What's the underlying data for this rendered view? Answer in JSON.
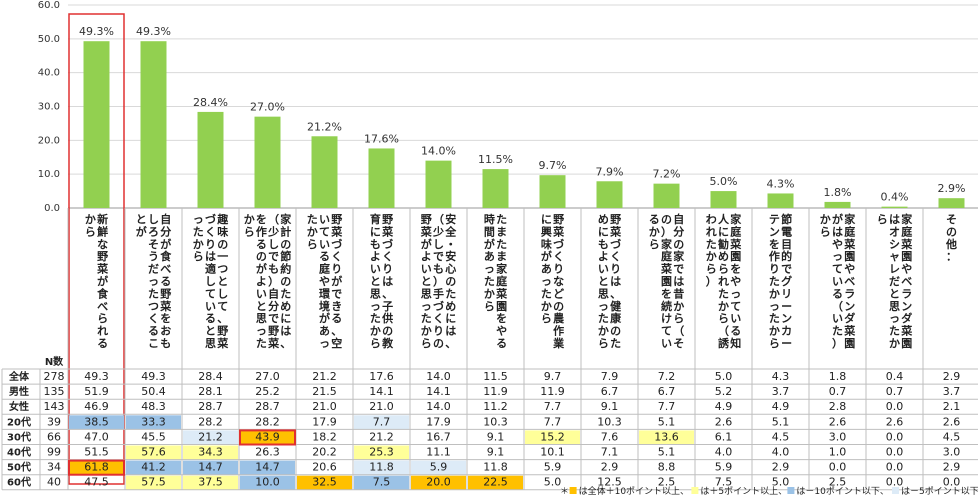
{
  "chart_data": {
    "type": "bar",
    "ylim": [
      0,
      60
    ],
    "yticks": [
      "0.0",
      "10.0",
      "20.0",
      "30.0",
      "40.0",
      "50.0",
      "60.0"
    ],
    "categories": [
      "新鮮な野菜が食べられるから",
      "自分が食べる野菜をおもしろそうだったつくることが",
      "趣味の一つとして、野菜づくりは適していると思ったから",
      "家計の節約のためには、（少しでも）自分で野菜を作るのがよいと思ったから",
      "野菜づくりができる、空いている庭や環境があったから",
      "野菜づくりは、子供の教育にもよいと思ったから",
      "安全・安心のためには、（少しでも）手づくりの野菜がよいと思ったから",
      "たまたま家庭菜園をやる時間があったから",
      "野菜づくりなどの農作業に興味があったから",
      "野菜づくりは、健康のためにもよいと思ったから",
      "自分の家では昔から（その）家庭菜園を続けているから",
      "家庭菜園をやっている知人に勧められたから（誘われたから）",
      "節電目的でグリーンカーテンを作りたかったから",
      "家庭菜園やベランダ菜園がはやっている（いた）から",
      "家庭菜園やベランダ菜園はオシャレだと思ったから",
      "その他："
    ],
    "value_labels": [
      "49.3%",
      "49.3%",
      "28.4%",
      "27.0%",
      "21.2%",
      "17.6%",
      "14.0%",
      "11.5%",
      "9.7%",
      "7.9%",
      "7.2%",
      "5.0%",
      "4.3%",
      "1.8%",
      "0.4%",
      "2.9%"
    ],
    "values": [
      49.3,
      49.3,
      28.4,
      27.0,
      21.2,
      17.6,
      14.0,
      11.5,
      9.7,
      7.9,
      7.2,
      5.0,
      4.3,
      1.8,
      0.4,
      2.9
    ],
    "highlight_category_index": 0,
    "n_header": "N数",
    "table": [
      {
        "label": "全体",
        "n": "278",
        "cells": [
          "49.3",
          "49.3",
          "28.4",
          "27.0",
          "21.2",
          "17.6",
          "14.0",
          "11.5",
          "9.7",
          "7.9",
          "7.2",
          "5.0",
          "4.3",
          "1.8",
          "0.4",
          "2.9"
        ],
        "styles": [
          0,
          0,
          0,
          0,
          0,
          0,
          0,
          0,
          0,
          0,
          0,
          0,
          0,
          0,
          0,
          0
        ]
      },
      {
        "label": "男性",
        "n": "135",
        "cells": [
          "51.9",
          "50.4",
          "28.1",
          "25.2",
          "21.5",
          "14.1",
          "14.1",
          "11.9",
          "11.9",
          "6.7",
          "6.7",
          "5.2",
          "3.7",
          "0.7",
          "0.7",
          "3.7"
        ],
        "styles": [
          0,
          0,
          0,
          0,
          0,
          0,
          0,
          0,
          0,
          0,
          0,
          0,
          0,
          0,
          0,
          0
        ]
      },
      {
        "label": "女性",
        "n": "143",
        "cells": [
          "46.9",
          "48.3",
          "28.7",
          "28.7",
          "21.0",
          "21.0",
          "14.0",
          "11.2",
          "7.7",
          "9.1",
          "7.7",
          "4.9",
          "4.9",
          "2.8",
          "0.0",
          "2.1"
        ],
        "styles": [
          0,
          0,
          0,
          0,
          0,
          0,
          0,
          0,
          0,
          0,
          0,
          0,
          0,
          0,
          0,
          0
        ]
      },
      {
        "label": "20代",
        "n": "39",
        "cells": [
          "38.5",
          "33.3",
          "28.2",
          "28.2",
          "17.9",
          "7.7",
          "17.9",
          "10.3",
          "7.7",
          "10.3",
          "5.1",
          "2.6",
          "5.1",
          "2.6",
          "2.6",
          "2.6"
        ],
        "styles": [
          3,
          3,
          0,
          0,
          0,
          4,
          0,
          0,
          0,
          0,
          0,
          0,
          0,
          0,
          0,
          0
        ]
      },
      {
        "label": "30代",
        "n": "66",
        "cells": [
          "47.0",
          "45.5",
          "21.2",
          "43.9",
          "18.2",
          "21.2",
          "16.7",
          "9.1",
          "15.2",
          "7.6",
          "13.6",
          "6.1",
          "4.5",
          "3.0",
          "0.0",
          "4.5"
        ],
        "styles": [
          0,
          0,
          4,
          1,
          0,
          0,
          0,
          0,
          2,
          0,
          2,
          0,
          0,
          0,
          0,
          0
        ]
      },
      {
        "label": "40代",
        "n": "99",
        "cells": [
          "51.5",
          "57.6",
          "34.3",
          "26.3",
          "20.2",
          "25.3",
          "11.1",
          "9.1",
          "10.1",
          "7.1",
          "5.1",
          "4.0",
          "4.0",
          "1.0",
          "0.0",
          "3.0"
        ],
        "styles": [
          0,
          2,
          2,
          0,
          0,
          2,
          0,
          0,
          0,
          0,
          0,
          0,
          0,
          0,
          0,
          0
        ]
      },
      {
        "label": "50代",
        "n": "34",
        "cells": [
          "61.8",
          "41.2",
          "14.7",
          "14.7",
          "20.6",
          "11.8",
          "5.9",
          "11.8",
          "5.9",
          "2.9",
          "8.8",
          "5.9",
          "2.9",
          "0.0",
          "0.0",
          "2.9"
        ],
        "styles": [
          1,
          3,
          3,
          3,
          0,
          4,
          4,
          0,
          0,
          0,
          0,
          0,
          0,
          0,
          0,
          0
        ]
      },
      {
        "label": "60代",
        "n": "40",
        "cells": [
          "47.5",
          "57.5",
          "37.5",
          "10.0",
          "32.5",
          "7.5",
          "20.0",
          "22.5",
          "5.0",
          "12.5",
          "2.5",
          "7.5",
          "5.0",
          "2.5",
          "0.0",
          "0.0"
        ],
        "styles": [
          0,
          2,
          2,
          3,
          1,
          3,
          1,
          1,
          0,
          0,
          0,
          0,
          0,
          0,
          0,
          0
        ]
      }
    ],
    "red_box_cells": [
      [
        4,
        3
      ],
      [
        6,
        0
      ]
    ],
    "legend_note": "＊■は全体＋10ポイント以上、■は＋5ポイント以上、■は－10ポイント以下、■は－5ポイント以下",
    "colors": {
      "bar": "#92d050",
      "plus10": "#ffc000",
      "plus5": "#ffff99",
      "minus10": "#9bc2e6",
      "minus5": "#ddebf7",
      "highlight": "#e03030"
    }
  }
}
